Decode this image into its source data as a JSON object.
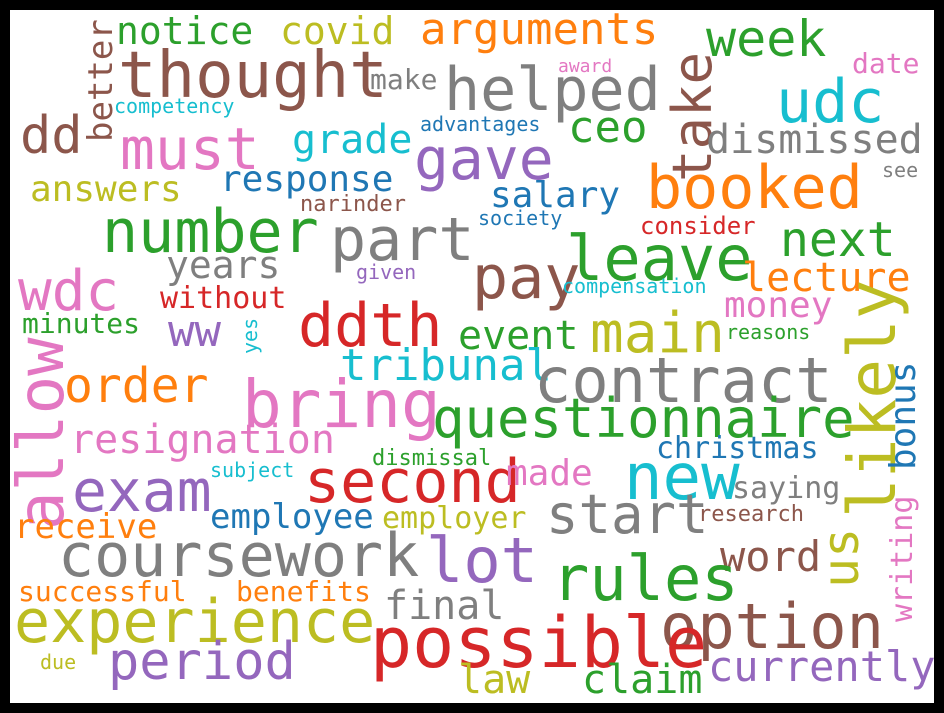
{
  "colors": {
    "background": "#ffffff",
    "frame": "#000000",
    "palette": {
      "green": "#2ca02c",
      "olive": "#bcbd22",
      "orange": "#ff7f0e",
      "brown": "#8c564b",
      "grey": "#7f7f7f",
      "cyan": "#17becf",
      "pink": "#e377c2",
      "purple": "#9467bd",
      "red": "#d62728",
      "blue": "#1f77b4"
    }
  },
  "words": [
    {
      "text": "notice",
      "color": "green"
    },
    {
      "text": "covid",
      "color": "olive"
    },
    {
      "text": "arguments",
      "color": "orange"
    },
    {
      "text": "week",
      "color": "green"
    },
    {
      "text": "date",
      "color": "pink"
    },
    {
      "text": "thought",
      "color": "brown"
    },
    {
      "text": "make",
      "color": "grey"
    },
    {
      "text": "award",
      "color": "pink"
    },
    {
      "text": "helped",
      "color": "grey"
    },
    {
      "text": "take",
      "color": "brown"
    },
    {
      "text": "udc",
      "color": "cyan"
    },
    {
      "text": "better",
      "color": "brown"
    },
    {
      "text": "competency",
      "color": "cyan"
    },
    {
      "text": "dd",
      "color": "brown"
    },
    {
      "text": "must",
      "color": "pink"
    },
    {
      "text": "grade",
      "color": "cyan"
    },
    {
      "text": "advantages",
      "color": "blue"
    },
    {
      "text": "ceo",
      "color": "green"
    },
    {
      "text": "dismissed",
      "color": "grey"
    },
    {
      "text": "gave",
      "color": "purple"
    },
    {
      "text": "see",
      "color": "grey"
    },
    {
      "text": "response",
      "color": "blue"
    },
    {
      "text": "answers",
      "color": "olive"
    },
    {
      "text": "booked",
      "color": "orange"
    },
    {
      "text": "salary",
      "color": "blue"
    },
    {
      "text": "narinder",
      "color": "brown"
    },
    {
      "text": "society",
      "color": "blue"
    },
    {
      "text": "consider",
      "color": "red"
    },
    {
      "text": "number",
      "color": "green"
    },
    {
      "text": "part",
      "color": "grey"
    },
    {
      "text": "next",
      "color": "green"
    },
    {
      "text": "leave",
      "color": "green"
    },
    {
      "text": "years",
      "color": "grey"
    },
    {
      "text": "pay",
      "color": "brown"
    },
    {
      "text": "given",
      "color": "purple"
    },
    {
      "text": "compensation",
      "color": "cyan"
    },
    {
      "text": "lecture",
      "color": "orange"
    },
    {
      "text": "wdc",
      "color": "pink"
    },
    {
      "text": "without",
      "color": "red"
    },
    {
      "text": "money",
      "color": "pink"
    },
    {
      "text": "minutes",
      "color": "green"
    },
    {
      "text": "ww",
      "color": "purple"
    },
    {
      "text": "ddth",
      "color": "red"
    },
    {
      "text": "yes",
      "color": "cyan"
    },
    {
      "text": "main",
      "color": "olive"
    },
    {
      "text": "event",
      "color": "green"
    },
    {
      "text": "reasons",
      "color": "green"
    },
    {
      "text": "likely",
      "color": "olive"
    },
    {
      "text": "allow",
      "color": "pink"
    },
    {
      "text": "order",
      "color": "orange"
    },
    {
      "text": "tribunal",
      "color": "cyan"
    },
    {
      "text": "contract",
      "color": "grey"
    },
    {
      "text": "bonus",
      "color": "blue"
    },
    {
      "text": "bring",
      "color": "pink"
    },
    {
      "text": "questionnaire",
      "color": "green"
    },
    {
      "text": "resignation",
      "color": "pink"
    },
    {
      "text": "christmas",
      "color": "blue"
    },
    {
      "text": "dismissal",
      "color": "green"
    },
    {
      "text": "subject",
      "color": "cyan"
    },
    {
      "text": "exam",
      "color": "purple"
    },
    {
      "text": "second",
      "color": "red"
    },
    {
      "text": "made",
      "color": "pink"
    },
    {
      "text": "new",
      "color": "cyan"
    },
    {
      "text": "saying",
      "color": "grey"
    },
    {
      "text": "us",
      "color": "olive"
    },
    {
      "text": "writing",
      "color": "pink"
    },
    {
      "text": "employee",
      "color": "blue"
    },
    {
      "text": "employer",
      "color": "olive"
    },
    {
      "text": "start",
      "color": "grey"
    },
    {
      "text": "research",
      "color": "brown"
    },
    {
      "text": "receive",
      "color": "orange"
    },
    {
      "text": "coursework",
      "color": "grey"
    },
    {
      "text": "lot",
      "color": "purple"
    },
    {
      "text": "word",
      "color": "brown"
    },
    {
      "text": "rules",
      "color": "green"
    },
    {
      "text": "successful",
      "color": "orange"
    },
    {
      "text": "benefits",
      "color": "orange"
    },
    {
      "text": "final",
      "color": "grey"
    },
    {
      "text": "experience",
      "color": "olive"
    },
    {
      "text": "option",
      "color": "brown"
    },
    {
      "text": "possible",
      "color": "red"
    },
    {
      "text": "period",
      "color": "purple"
    },
    {
      "text": "due",
      "color": "olive"
    },
    {
      "text": "currently",
      "color": "purple"
    },
    {
      "text": "law",
      "color": "olive"
    },
    {
      "text": "claim",
      "color": "green"
    }
  ]
}
